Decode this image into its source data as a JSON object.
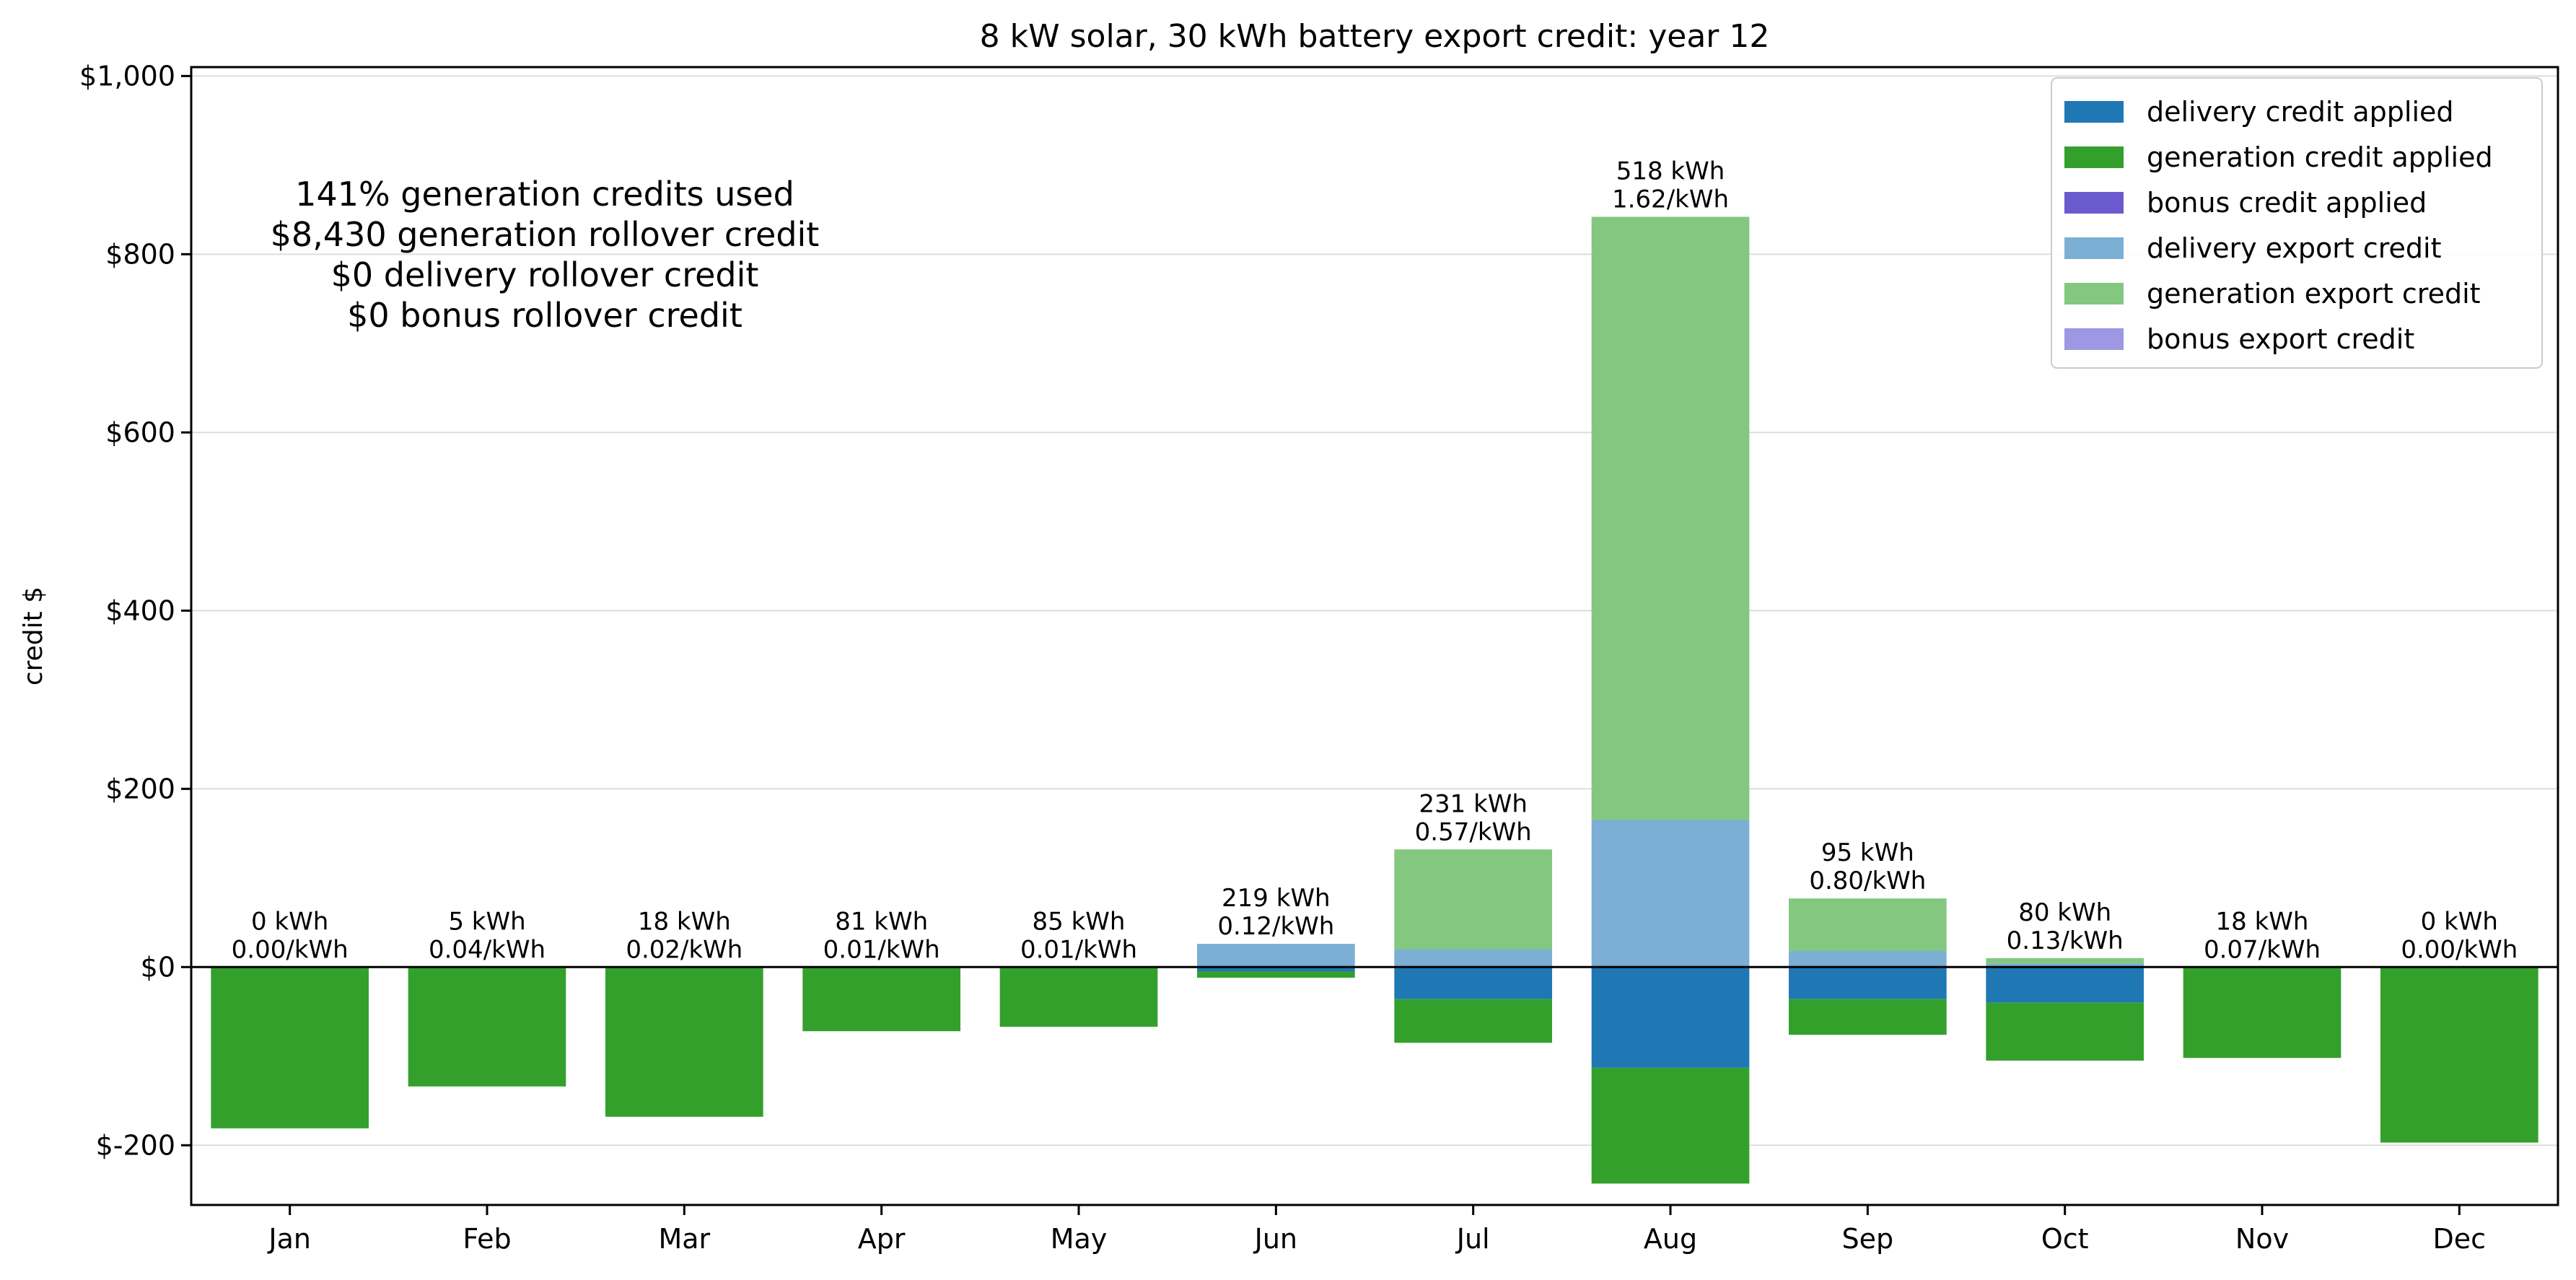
{
  "chart_data": {
    "type": "bar",
    "title": "8 kW solar, 30 kWh battery export credit: year 12",
    "xlabel": "",
    "ylabel": "credit $",
    "ylim": [
      -267,
      1010
    ],
    "yticks": [
      -200,
      0,
      200,
      400,
      600,
      800,
      1000
    ],
    "ytick_labels": [
      "$-200",
      "$0",
      "$200",
      "$400",
      "$600",
      "$800",
      "$1,000"
    ],
    "grid": "horizontal",
    "legend_position": "top-right",
    "categories": [
      "Jan",
      "Feb",
      "Mar",
      "Apr",
      "May",
      "Jun",
      "Jul",
      "Aug",
      "Sep",
      "Oct",
      "Nov",
      "Dec"
    ],
    "series": [
      {
        "name": "delivery credit applied",
        "color": "#1f77b4",
        "stack": "negative",
        "values": [
          0,
          0,
          0,
          0,
          0,
          -5,
          -36,
          -113,
          -36,
          -40,
          0,
          0
        ]
      },
      {
        "name": "generation credit applied",
        "color": "#33a02c",
        "stack": "negative",
        "values": [
          -181,
          -134,
          -168,
          -72,
          -67,
          -7,
          -49,
          -130,
          -40,
          -65,
          -102,
          -197
        ]
      },
      {
        "name": "bonus credit applied",
        "color": "#6a5acd",
        "stack": "negative",
        "values": [
          0,
          0,
          0,
          0,
          0,
          0,
          0,
          0,
          0,
          0,
          0,
          0
        ]
      },
      {
        "name": "delivery export credit",
        "color": "#7bafd4",
        "stack": "positive",
        "values": [
          0,
          0,
          0,
          0,
          0,
          26,
          20,
          165,
          18,
          4,
          0,
          0
        ]
      },
      {
        "name": "generation export credit",
        "color": "#84c780",
        "stack": "positive",
        "values": [
          0,
          0,
          0,
          0,
          0,
          0,
          112,
          677,
          59,
          6,
          0,
          0
        ]
      },
      {
        "name": "bonus export credit",
        "color": "#9d97e4",
        "stack": "positive",
        "values": [
          0,
          0,
          0,
          0,
          0,
          0,
          0,
          0,
          0,
          0,
          0,
          0
        ]
      }
    ],
    "bar_labels": [
      [
        "0 kWh",
        "0.00/kWh"
      ],
      [
        "5 kWh",
        "0.04/kWh"
      ],
      [
        "18 kWh",
        "0.02/kWh"
      ],
      [
        "81 kWh",
        "0.01/kWh"
      ],
      [
        "85 kWh",
        "0.01/kWh"
      ],
      [
        "219 kWh",
        "0.12/kWh"
      ],
      [
        "231 kWh",
        "0.57/kWh"
      ],
      [
        "518 kWh",
        "1.62/kWh"
      ],
      [
        "95 kWh",
        "0.80/kWh"
      ],
      [
        "80 kWh",
        "0.13/kWh"
      ],
      [
        "18 kWh",
        "0.07/kWh"
      ],
      [
        "0 kWh",
        "0.00/kWh"
      ]
    ],
    "annotation": [
      "141% generation credits used",
      "$8,430 generation rollover credit",
      "$0 delivery rollover credit",
      "$0 bonus rollover credit"
    ]
  }
}
